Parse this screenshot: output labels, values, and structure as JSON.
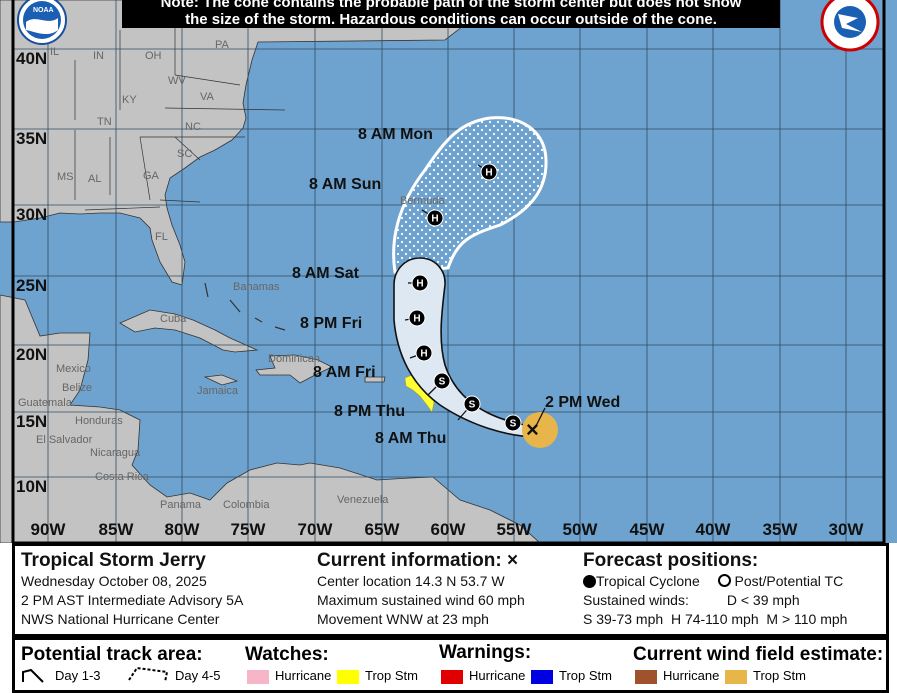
{
  "note": {
    "line1": "Note: The cone contains the probable path of the storm center but does not show",
    "line2": "the size of the storm. Hazardous conditions can occur outside of the cone."
  },
  "logos": {
    "left": "NOAA",
    "right": "NATIONAL WEATHER SERVICE"
  },
  "map": {
    "lat_labels": [
      "40N",
      "35N",
      "30N",
      "25N",
      "20N",
      "15N",
      "10N"
    ],
    "lon_labels": [
      "90W",
      "85W",
      "80W",
      "75W",
      "70W",
      "65W",
      "60W",
      "55W",
      "50W",
      "45W",
      "40W",
      "35W",
      "30W"
    ],
    "states": [
      "IL",
      "IN",
      "OH",
      "PA",
      "WV",
      "KY",
      "VA",
      "TN",
      "NC",
      "SC",
      "MS",
      "AL",
      "GA",
      "FL"
    ],
    "places": [
      "Bahamas",
      "Cuba",
      "Mexico",
      "Belize",
      "Guatemala",
      "Honduras",
      "El Salvador",
      "Nicaragua",
      "Costa Rica",
      "Panama",
      "Colombia",
      "Venezuela",
      "Jamaica",
      "Dominican",
      "Bermuda"
    ],
    "track": {
      "current_label": "2 PM Wed",
      "points": [
        {
          "label": "8 AM Thu",
          "type": "S"
        },
        {
          "label": "8 PM Thu",
          "type": "S"
        },
        {
          "label": "8 AM Fri",
          "type": "H"
        },
        {
          "label": "8 PM Fri",
          "type": "H"
        },
        {
          "label": "8 AM Sat",
          "type": "H"
        },
        {
          "label": "8 AM Sun",
          "type": "H"
        },
        {
          "label": "8 AM Mon",
          "type": "H"
        }
      ],
      "first_marker_type": "S"
    },
    "colors": {
      "ocean": "#6fa3cf",
      "land": "#c3c3c3",
      "cone": "#dde8f3",
      "wind_field": "#e8b54a",
      "ts_watch": "#ffff33"
    }
  },
  "info": {
    "storm_name": "Tropical Storm Jerry",
    "date": "Wednesday October 08, 2025",
    "advisory": "2 PM AST Intermediate Advisory 5A",
    "center": "NWS National Hurricane Center",
    "current_title": "Current information: ×",
    "location": "Center location 14.3 N 53.7 W",
    "max_wind": "Maximum sustained wind 60 mph",
    "movement": "Movement WNW at 23 mph",
    "forecast_title": "Forecast positions:",
    "tc_label": "Tropical Cyclone",
    "post_label": "Post/Potential TC",
    "sustained": "Sustained winds:",
    "d_def": "D < 39 mph",
    "scale": "S 39-73 mph  H 74-110 mph  M > 110 mph"
  },
  "legend": {
    "track_area": "Potential track area:",
    "day13": "Day 1-3",
    "day45": "Day 4-5",
    "watches": "Watches:",
    "watch_hurr": "Hurricane",
    "watch_ts": "Trop Stm",
    "warnings": "Warnings:",
    "warn_hurr": "Hurricane",
    "warn_ts": "Trop Stm",
    "wind_field": "Current wind field estimate:",
    "wf_hurr": "Hurricane",
    "wf_ts": "Trop Stm",
    "colors": {
      "watch_hurr": "#f7b6c8",
      "watch_ts": "#ffff00",
      "warn_hurr": "#e00000",
      "warn_ts": "#0000e0",
      "wf_hurr": "#a0522d",
      "wf_ts": "#e8b54a"
    }
  }
}
